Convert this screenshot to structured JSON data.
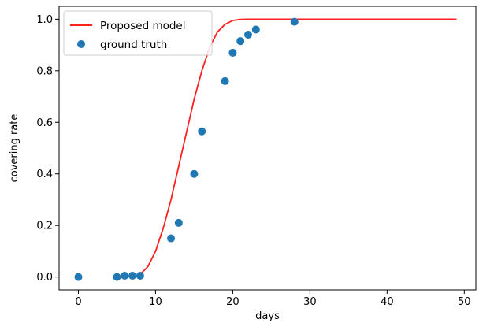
{
  "chart_data": {
    "type": "line",
    "xlabel": "days",
    "ylabel": "covering rate",
    "xlim": [
      -2.5,
      51.5
    ],
    "ylim": [
      -0.05,
      1.05
    ],
    "xticks": [
      0,
      10,
      20,
      30,
      40,
      50
    ],
    "yticks": [
      0.0,
      0.2,
      0.4,
      0.6,
      0.8,
      1.0
    ],
    "xtick_labels": [
      "0",
      "10",
      "20",
      "30",
      "40",
      "50"
    ],
    "ytick_labels": [
      "0.0",
      "0.2",
      "0.4",
      "0.6",
      "0.8",
      "1.0"
    ],
    "grid": false,
    "legend_position": "top-left",
    "series": [
      {
        "name": "Proposed model",
        "type": "line",
        "color": "#ff2020",
        "x": [
          5,
          6,
          7,
          8,
          9,
          10,
          11,
          12,
          13,
          14,
          15,
          16,
          17,
          18,
          19,
          20,
          21,
          22,
          23,
          24,
          25,
          26,
          27,
          28,
          29,
          30,
          31,
          32,
          33,
          34,
          35,
          36,
          37,
          38,
          39,
          40,
          41,
          42,
          43,
          44,
          45,
          46,
          47,
          48,
          49
        ],
        "y": [
          0.0,
          0.0,
          0.003,
          0.01,
          0.04,
          0.1,
          0.19,
          0.3,
          0.43,
          0.56,
          0.69,
          0.8,
          0.89,
          0.95,
          0.98,
          0.995,
          0.999,
          1.0,
          1.0,
          1.0,
          1.0,
          1.0,
          1.0,
          1.0,
          1.0,
          1.0,
          1.0,
          1.0,
          1.0,
          1.0,
          1.0,
          1.0,
          1.0,
          1.0,
          1.0,
          1.0,
          1.0,
          1.0,
          1.0,
          1.0,
          1.0,
          1.0,
          1.0,
          1.0,
          1.0
        ]
      },
      {
        "name": "ground truth",
        "type": "scatter",
        "color": "#1f77b4",
        "x": [
          0,
          5,
          6,
          7,
          8,
          12,
          13,
          15,
          16,
          19,
          20,
          21,
          22,
          23,
          28
        ],
        "y": [
          0.0,
          0.0,
          0.005,
          0.005,
          0.005,
          0.15,
          0.21,
          0.4,
          0.565,
          0.76,
          0.87,
          0.915,
          0.94,
          0.96,
          0.99
        ]
      }
    ]
  }
}
